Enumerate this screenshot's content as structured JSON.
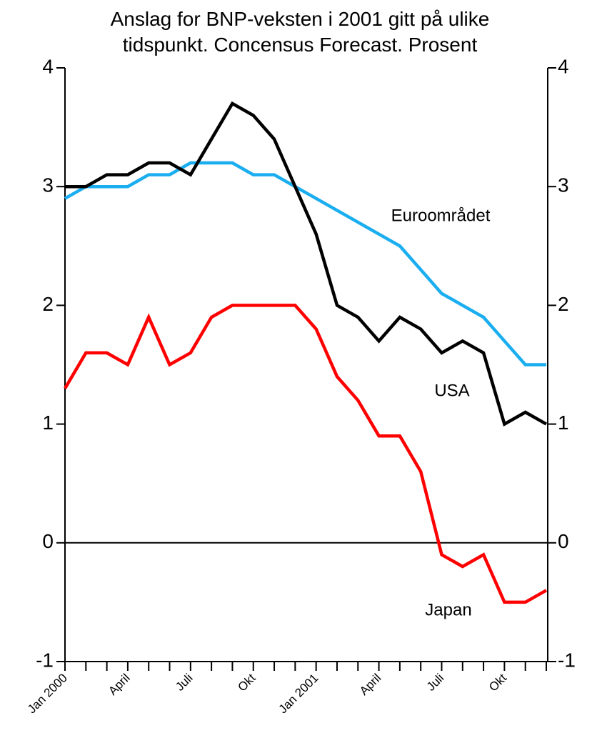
{
  "chart_data": {
    "type": "line",
    "title": [
      "Anslag for BNP-veksten i 2001 gitt på ulike",
      "tidspunkt. Concensus Forecast. Prosent"
    ],
    "categories": [
      "Jan 2000",
      null,
      null,
      "April",
      null,
      null,
      "Juli",
      null,
      null,
      "Okt",
      null,
      null,
      "Jan 2001",
      null,
      null,
      "April",
      null,
      null,
      "Juli",
      null,
      null,
      "Okt",
      null,
      null
    ],
    "series": [
      {
        "name": "Euroområdet",
        "color": "#1aaef0",
        "values": [
          2.9,
          3.0,
          3.0,
          3.0,
          3.1,
          3.1,
          3.2,
          3.2,
          3.2,
          3.1,
          3.1,
          3.0,
          2.9,
          2.8,
          2.7,
          2.6,
          2.5,
          2.3,
          2.1,
          2.0,
          1.9,
          1.7,
          1.5,
          1.5
        ]
      },
      {
        "name": "USA",
        "color": "#000000",
        "values": [
          3.0,
          3.0,
          3.1,
          3.1,
          3.2,
          3.2,
          3.1,
          3.4,
          3.7,
          3.6,
          3.4,
          3.0,
          2.6,
          2.0,
          1.9,
          1.7,
          1.9,
          1.8,
          1.6,
          1.7,
          1.6,
          1.0,
          1.1,
          1.0
        ]
      },
      {
        "name": "Japan",
        "color": "#ff0000",
        "values": [
          1.3,
          1.6,
          1.6,
          1.5,
          1.9,
          1.5,
          1.6,
          1.9,
          2.0,
          2.0,
          2.0,
          2.0,
          1.8,
          1.4,
          1.2,
          0.9,
          0.9,
          0.6,
          -0.1,
          -0.2,
          -0.1,
          -0.5,
          -0.5,
          -0.4
        ]
      }
    ],
    "ylim": [
      -1,
      4
    ],
    "yticks": [
      -1,
      0,
      1,
      2,
      3,
      4
    ],
    "y2lim": [
      -1,
      4
    ],
    "y2ticks": [
      -1,
      0,
      1,
      2,
      3,
      4
    ],
    "zero_line": true
  }
}
